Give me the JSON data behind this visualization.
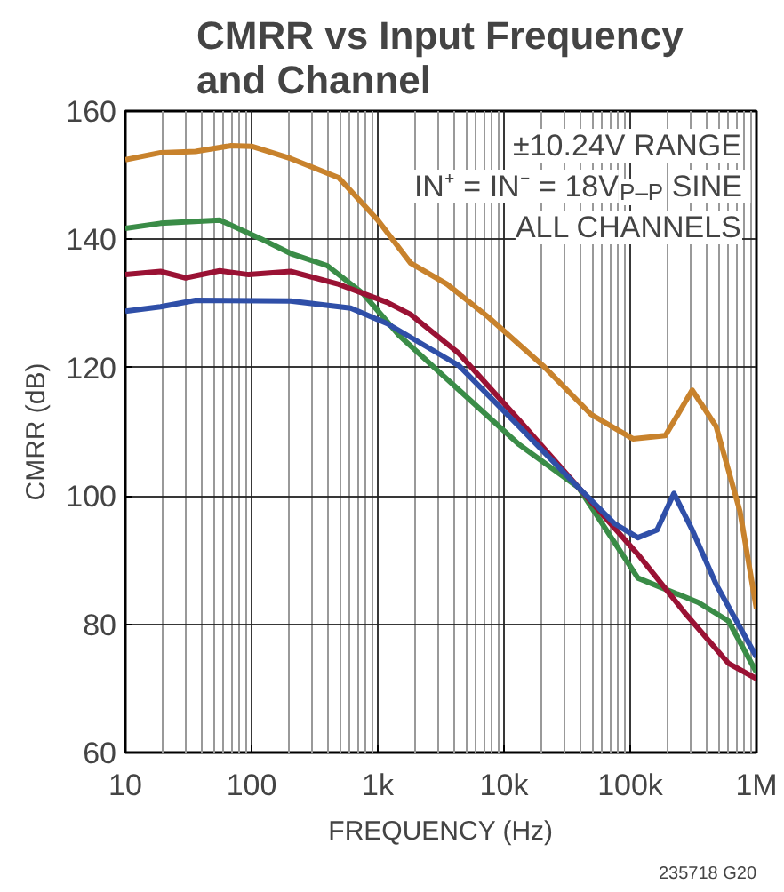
{
  "chart_data": {
    "type": "line",
    "title": "CMRR vs Input Frequency\nand Channel",
    "xlabel": "FREQUENCY (Hz)",
    "ylabel": "CMRR (dB)",
    "log": "x",
    "grid": true,
    "xlim": [
      10,
      1000000
    ],
    "ylim": [
      60,
      160
    ],
    "xticks": [
      10,
      100,
      {
        "value": 1000,
        "label": "1k"
      },
      {
        "value": 10000,
        "label": "10k"
      },
      {
        "value": 100000,
        "label": "100k"
      },
      {
        "value": 1000000,
        "label": "1M"
      }
    ],
    "yticks": [
      60,
      80,
      100,
      120,
      140,
      160
    ],
    "annotations": [
      "±10.24V RANGE",
      "IN⁺ = IN⁻ = 18V$_{P–P}$ SINE",
      "ALL CHANNELS",
      "235718 G20"
    ],
    "series": [
      {
        "color": "#c8822c",
        "x": [
          10,
          19,
          36,
          69,
          100,
          204,
          490,
          1000,
          1820,
          3540,
          7600,
          20400,
          49000,
          105000,
          190000,
          310000,
          480000,
          740000,
          1000000
        ],
        "values": [
          152.4,
          153.5,
          153.7,
          154.6,
          154.5,
          152.6,
          149.6,
          143,
          136.3,
          133,
          127.8,
          120.3,
          112.7,
          108.9,
          109.4,
          116.5,
          110.8,
          97.6,
          82.4
        ]
      },
      {
        "color": "#3a8c47",
        "x": [
          10,
          19,
          56,
          118,
          204,
          398,
          760,
          1480,
          4400,
          13200,
          39000,
          115000,
          345000,
          600000,
          1000000
        ],
        "values": [
          141.7,
          142.5,
          143,
          140.1,
          137.8,
          135.9,
          131.6,
          125,
          116.5,
          108,
          101.3,
          87.2,
          83.4,
          80.5,
          72.5
        ]
      },
      {
        "color": "#9a1234",
        "x": [
          10,
          19,
          30,
          56,
          95,
          204,
          490,
          1180,
          1820,
          4400,
          13200,
          39000,
          115000,
          278000,
          600000,
          1000000
        ],
        "values": [
          134.5,
          135,
          134,
          135.1,
          134.5,
          135,
          133,
          130.2,
          128.3,
          122.2,
          111.8,
          101.3,
          90.9,
          81.5,
          73.9,
          71.5
        ]
      },
      {
        "color": "#2f4fa8",
        "x": [
          10,
          19,
          36,
          204,
          610,
          1180,
          4400,
          13200,
          39000,
          75000,
          115000,
          163000,
          222000,
          310000,
          480000,
          1000000
        ],
        "values": [
          128.8,
          129.5,
          130.5,
          130.4,
          129.3,
          126.9,
          120.3,
          110.8,
          101.3,
          95.7,
          93.5,
          94.7,
          100.4,
          94.7,
          86.2,
          74.9
        ]
      }
    ]
  }
}
